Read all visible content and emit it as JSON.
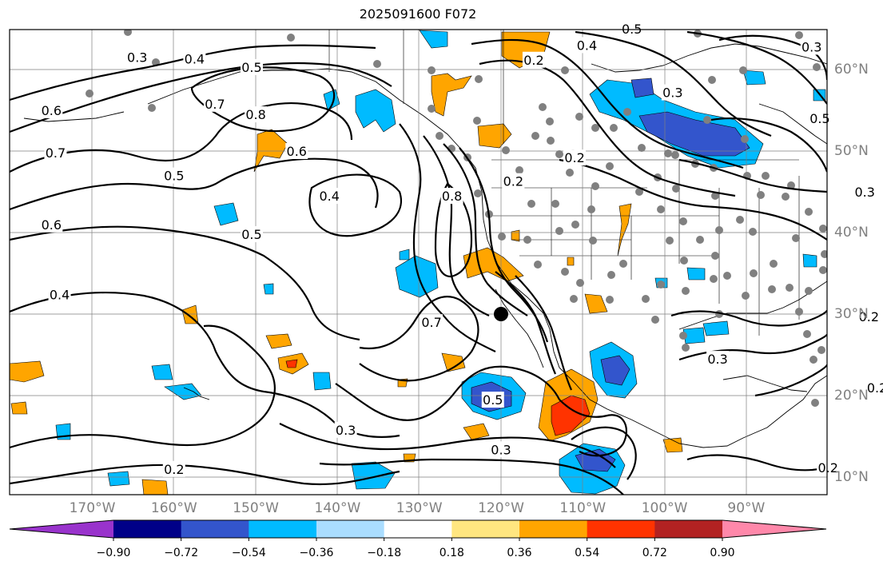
{
  "title": "2025091600 F072",
  "lon_labels": [
    {
      "text": "170°W",
      "lon": -170
    },
    {
      "text": "160°W",
      "lon": -160
    },
    {
      "text": "150°W",
      "lon": -150
    },
    {
      "text": "140°W",
      "lon": -140
    },
    {
      "text": "130°W",
      "lon": -130
    },
    {
      "text": "120°W",
      "lon": -120
    },
    {
      "text": "110°W",
      "lon": -110
    },
    {
      "text": "100°W",
      "lon": -100
    },
    {
      "text": "90°W",
      "lon": -90
    }
  ],
  "lat_labels": [
    {
      "text": "60°N",
      "lat": 60
    },
    {
      "text": "50°N",
      "lat": 50
    },
    {
      "text": "40°N",
      "lat": 40
    },
    {
      "text": "30°N",
      "lat": 30
    },
    {
      "text": "20°N",
      "lat": 20
    },
    {
      "text": "10°N",
      "lat": 10
    }
  ],
  "colorbar": {
    "ticks": [
      "−0.90",
      "−0.72",
      "−0.54",
      "−0.36",
      "−0.18",
      "0.18",
      "0.36",
      "0.54",
      "0.72",
      "0.90"
    ],
    "colors": [
      "#9933cc",
      "#000088",
      "#3355cc",
      "#00bbff",
      "#aaddff",
      "#ffffff",
      "#ffe680",
      "#ffa500",
      "#ff3300",
      "#b22222",
      "#ff88aa"
    ]
  },
  "contour_labels": [
    {
      "text": "0.3",
      "lon": -164.5,
      "lat": 61.5
    },
    {
      "text": "0.4",
      "lon": -157.5,
      "lat": 61.3
    },
    {
      "text": "0.5",
      "lon": -150.5,
      "lat": 60.3
    },
    {
      "text": "0.6",
      "lon": -175.0,
      "lat": 55.0
    },
    {
      "text": "0.7",
      "lon": -155.0,
      "lat": 55.8
    },
    {
      "text": "0.8",
      "lon": -150.0,
      "lat": 54.5
    },
    {
      "text": "0.7",
      "lon": -174.5,
      "lat": 49.8
    },
    {
      "text": "0.6",
      "lon": -145.0,
      "lat": 50.0
    },
    {
      "text": "0.5",
      "lon": -160.0,
      "lat": 47.0
    },
    {
      "text": "0.4",
      "lon": -141.0,
      "lat": 44.5
    },
    {
      "text": "0.6",
      "lon": -175.0,
      "lat": 41.0
    },
    {
      "text": "0.5",
      "lon": -150.5,
      "lat": 39.8
    },
    {
      "text": "0.4",
      "lon": -174.0,
      "lat": 32.4
    },
    {
      "text": "0.7",
      "lon": -128.5,
      "lat": 29.0
    },
    {
      "text": "0.8",
      "lon": -126.0,
      "lat": 44.5
    },
    {
      "text": "0.2",
      "lon": -116.0,
      "lat": 61.2
    },
    {
      "text": "0.4",
      "lon": -109.5,
      "lat": 63.0
    },
    {
      "text": "0.5",
      "lon": -104.0,
      "lat": 65.0
    },
    {
      "text": "0.3",
      "lon": -99.0,
      "lat": 57.2
    },
    {
      "text": "0.3",
      "lon": -82.0,
      "lat": 62.8
    },
    {
      "text": "0.5",
      "lon": -81.0,
      "lat": 54.0
    },
    {
      "text": "0.2",
      "lon": -118.5,
      "lat": 46.3
    },
    {
      "text": "0.2",
      "lon": -111.0,
      "lat": 49.2
    },
    {
      "text": "0.5",
      "lon": -121.0,
      "lat": 19.5
    },
    {
      "text": "0.3",
      "lon": -139.0,
      "lat": 15.8
    },
    {
      "text": "0.3",
      "lon": -120.0,
      "lat": 13.4
    },
    {
      "text": "0.2",
      "lon": -160.0,
      "lat": 11.0
    },
    {
      "text": "0.3",
      "lon": -93.5,
      "lat": 24.5
    },
    {
      "text": "0.2",
      "lon": -75.0,
      "lat": 29.7
    },
    {
      "text": "0.2",
      "lon": -80.0,
      "lat": 11.2
    },
    {
      "text": "0.2",
      "lon": -74.0,
      "lat": 21.0
    },
    {
      "text": "0.3",
      "lon": -75.5,
      "lat": 45.0
    }
  ],
  "marker": {
    "lon": -120.0,
    "lat": 30.0
  }
}
